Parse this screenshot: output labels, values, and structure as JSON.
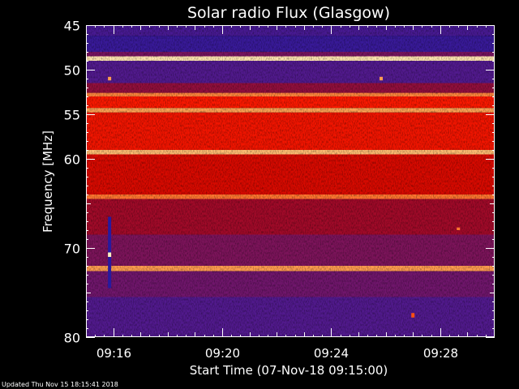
{
  "chart_data": {
    "type": "heatmap",
    "title": "Solar radio Flux (Glasgow)",
    "xlabel": "Start Time (07-Nov-18 09:15:00)",
    "ylabel": "Frequency [MHz]",
    "x_range": [
      "09:15:00",
      "09:30:00"
    ],
    "y_range_mhz": [
      45,
      80
    ],
    "y_inverted": true,
    "x_ticks": [
      "09:16",
      "09:20",
      "09:24",
      "09:28"
    ],
    "y_ticks": [
      45,
      50,
      55,
      60,
      70,
      80
    ],
    "colormap": [
      "#1a1aa0",
      "#3a1a9a",
      "#5a1a8a",
      "#901040",
      "#c00000",
      "#ff1a00",
      "#ff5010",
      "#ffb060",
      "#fff0c0"
    ],
    "frequency_bands_mhz": [
      {
        "from": 45.0,
        "to": 46.2,
        "intensity": 0.18
      },
      {
        "from": 46.2,
        "to": 48.0,
        "intensity": 0.12
      },
      {
        "from": 48.0,
        "to": 48.5,
        "intensity": 0.32
      },
      {
        "from": 48.5,
        "to": 49.0,
        "intensity": 0.98
      },
      {
        "from": 49.0,
        "to": 51.5,
        "intensity": 0.22
      },
      {
        "from": 51.5,
        "to": 52.6,
        "intensity": 0.38
      },
      {
        "from": 52.6,
        "to": 53.0,
        "intensity": 0.82
      },
      {
        "from": 53.0,
        "to": 54.3,
        "intensity": 0.62
      },
      {
        "from": 54.3,
        "to": 54.8,
        "intensity": 0.86
      },
      {
        "from": 54.8,
        "to": 59.0,
        "intensity": 0.6
      },
      {
        "from": 59.0,
        "to": 59.5,
        "intensity": 0.9
      },
      {
        "from": 59.5,
        "to": 64.0,
        "intensity": 0.55
      },
      {
        "from": 64.0,
        "to": 64.5,
        "intensity": 0.8
      },
      {
        "from": 64.5,
        "to": 68.5,
        "intensity": 0.42
      },
      {
        "from": 68.5,
        "to": 72.0,
        "intensity": 0.33
      },
      {
        "from": 72.0,
        "to": 72.6,
        "intensity": 0.85
      },
      {
        "from": 72.6,
        "to": 75.5,
        "intensity": 0.3
      },
      {
        "from": 75.5,
        "to": 80.0,
        "intensity": 0.22
      }
    ],
    "bursts": [
      {
        "time": "09:15:52",
        "from_mhz": 66.5,
        "to_mhz": 74.5,
        "intensity": 0.05
      },
      {
        "time": "09:15:52",
        "from_mhz": 70.5,
        "to_mhz": 71.0,
        "intensity": 1.0
      },
      {
        "time": "09:15:52",
        "from_mhz": 50.8,
        "to_mhz": 51.2,
        "intensity": 0.85
      },
      {
        "time": "09:25:50",
        "from_mhz": 50.8,
        "to_mhz": 51.2,
        "intensity": 0.85
      },
      {
        "time": "09:27:00",
        "from_mhz": 77.3,
        "to_mhz": 77.8,
        "intensity": 0.75
      },
      {
        "time": "09:28:40",
        "from_mhz": 67.7,
        "to_mhz": 68.0,
        "intensity": 0.8
      }
    ]
  },
  "footer": {
    "updated": "Updated Thu Nov 15 18:15:41 2018"
  }
}
